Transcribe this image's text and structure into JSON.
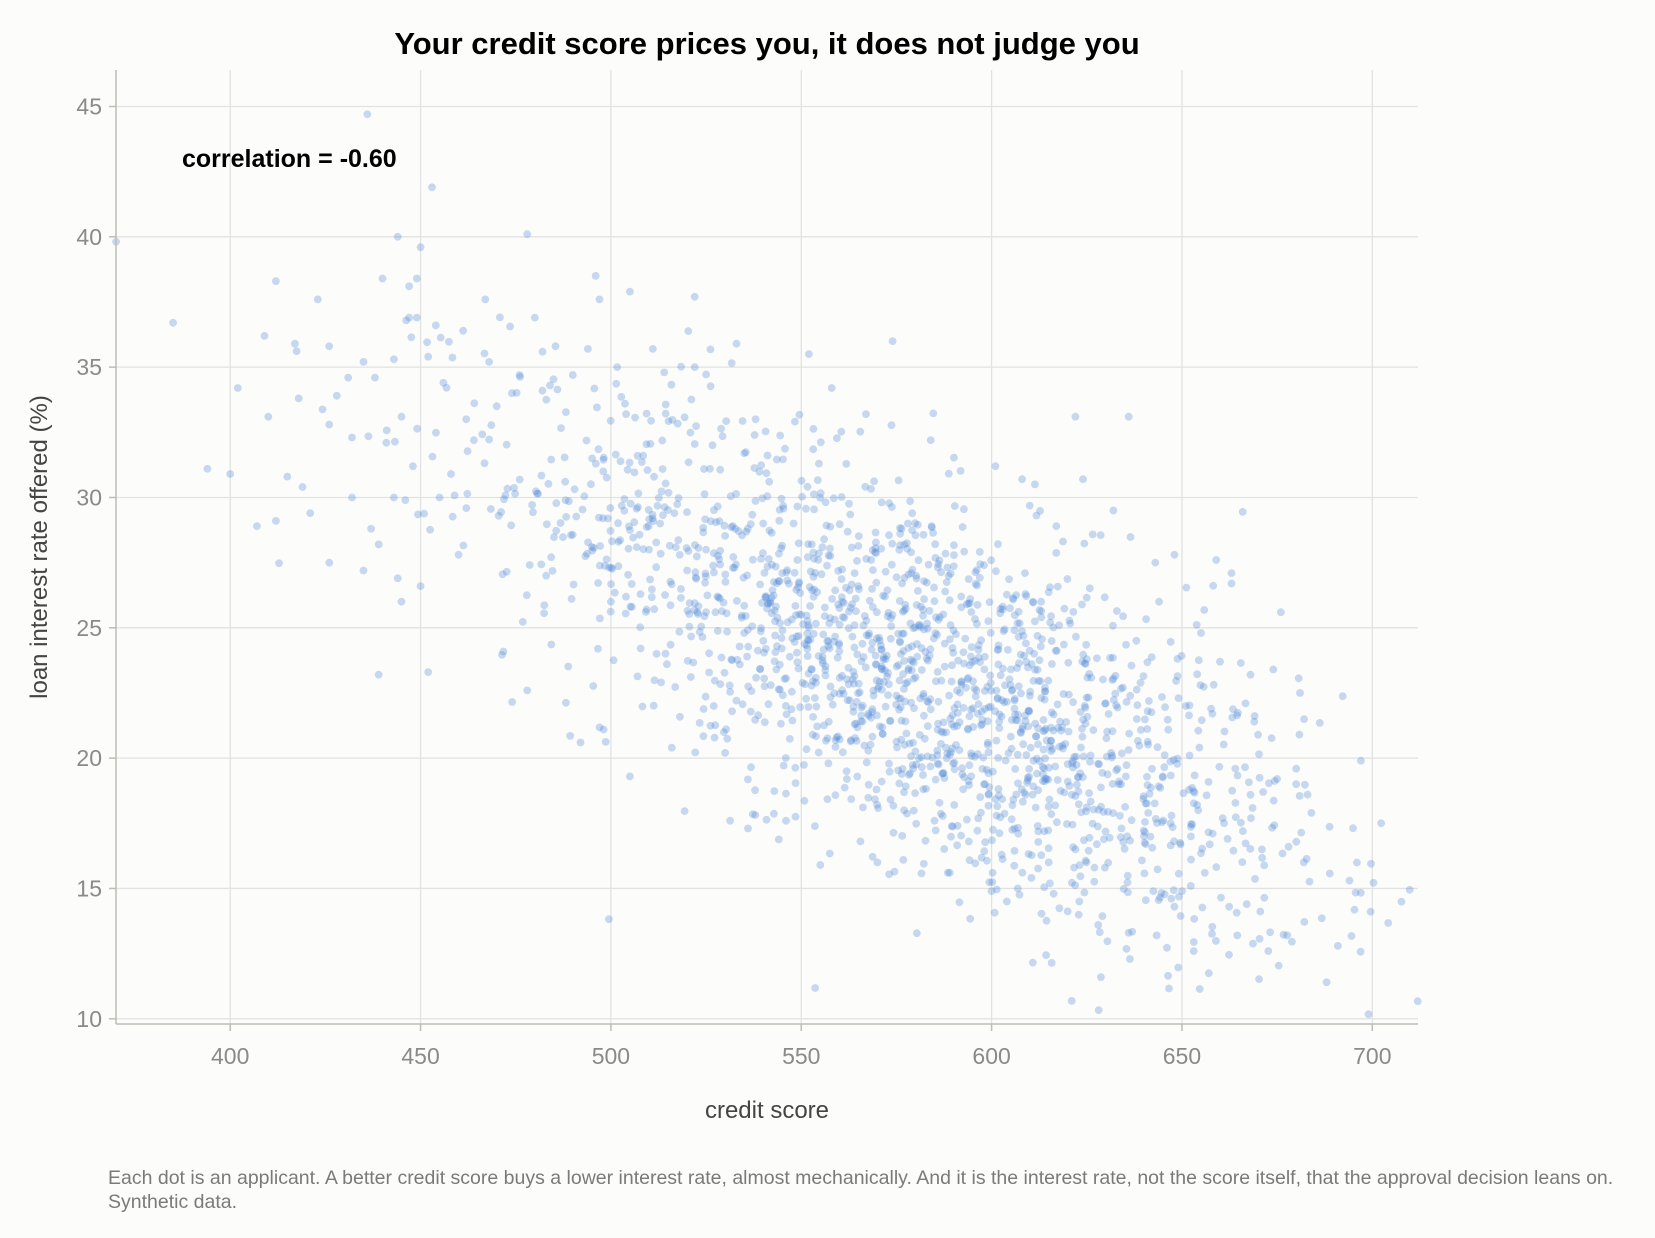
{
  "chart_data": {
    "type": "scatter",
    "title": "Your credit score prices you, it does not judge you",
    "xlabel": "credit score",
    "ylabel": "loan interest rate offered (%)",
    "xlim": [
      370,
      712
    ],
    "ylim": [
      9.8,
      46.4
    ],
    "xticks": [
      400,
      450,
      500,
      550,
      600,
      650,
      700
    ],
    "yticks": [
      10,
      15,
      20,
      25,
      30,
      35,
      40,
      45
    ],
    "grid": true,
    "annotation": "correlation = -0.60",
    "point_color": "#4a86d6",
    "n_points": 2000,
    "points_sample": [
      [
        385,
        36.7
      ],
      [
        394,
        31.1
      ],
      [
        400,
        30.9
      ],
      [
        402,
        34.2
      ],
      [
        407,
        28.9
      ],
      [
        409,
        36.2
      ],
      [
        410,
        33.1
      ],
      [
        412,
        38.3
      ],
      [
        412,
        29.1
      ],
      [
        415,
        30.8
      ],
      [
        417,
        35.9
      ],
      [
        418,
        33.8
      ],
      [
        419,
        30.4
      ],
      [
        421,
        29.4
      ],
      [
        423,
        37.6
      ],
      [
        426,
        35.8
      ],
      [
        426,
        32.8
      ],
      [
        428,
        33.9
      ],
      [
        431,
        34.6
      ],
      [
        432,
        32.3
      ],
      [
        432,
        30.0
      ],
      [
        435,
        35.2
      ],
      [
        435,
        27.2
      ],
      [
        436,
        44.7
      ],
      [
        437,
        28.8
      ],
      [
        438,
        34.6
      ],
      [
        439,
        28.2
      ],
      [
        439,
        23.2
      ],
      [
        440,
        38.4
      ],
      [
        441,
        32.1
      ],
      [
        443,
        35.3
      ],
      [
        443,
        30.0
      ],
      [
        444,
        26.9
      ],
      [
        444,
        40.0
      ],
      [
        445,
        26.0
      ],
      [
        445,
        33.1
      ],
      [
        446,
        29.9
      ],
      [
        447,
        38.1
      ],
      [
        447,
        36.9
      ],
      [
        448,
        31.2
      ],
      [
        449,
        36.9
      ],
      [
        449,
        38.4
      ],
      [
        450,
        39.6
      ],
      [
        450,
        26.6
      ],
      [
        452,
        35.4
      ],
      [
        452,
        23.3
      ],
      [
        453,
        41.9
      ],
      [
        454,
        36.6
      ],
      [
        455,
        30.0
      ],
      [
        456,
        34.4
      ],
      [
        458,
        30.9
      ],
      [
        460,
        27.8
      ],
      [
        462,
        33.0
      ],
      [
        464,
        32.2
      ],
      [
        467,
        37.6
      ],
      [
        468,
        35.2
      ],
      [
        470,
        33.5
      ],
      [
        474,
        34.0
      ],
      [
        476,
        34.7
      ],
      [
        478,
        40.1
      ],
      [
        478,
        22.6
      ],
      [
        480,
        36.9
      ],
      [
        482,
        34.1
      ],
      [
        483,
        27.0
      ],
      [
        484,
        34.3
      ],
      [
        488,
        30.6
      ],
      [
        490,
        34.7
      ],
      [
        492,
        20.6
      ],
      [
        495,
        28.1
      ],
      [
        496,
        38.5
      ],
      [
        497,
        37.6
      ],
      [
        498,
        31.0
      ],
      [
        500,
        26.0
      ],
      [
        502,
        28.3
      ],
      [
        504,
        33.2
      ],
      [
        505,
        37.9
      ],
      [
        505,
        19.3
      ],
      [
        507,
        31.6
      ],
      [
        510,
        28.0
      ],
      [
        511,
        35.7
      ],
      [
        512,
        24.0
      ],
      [
        514,
        34.8
      ],
      [
        516,
        20.4
      ],
      [
        520,
        27.2
      ],
      [
        522,
        37.7
      ],
      [
        522,
        35.0
      ],
      [
        525,
        28.0
      ],
      [
        527,
        22.0
      ],
      [
        528,
        26.2
      ],
      [
        530,
        20.2
      ],
      [
        532,
        28.9
      ],
      [
        533,
        35.9
      ],
      [
        535,
        24.8
      ],
      [
        536,
        17.3
      ],
      [
        538,
        33.0
      ],
      [
        540,
        29.0
      ],
      [
        542,
        22.8
      ],
      [
        545,
        27.1
      ],
      [
        546,
        17.6
      ],
      [
        548,
        29.0
      ],
      [
        550,
        25.5
      ],
      [
        552,
        35.5
      ],
      [
        553,
        20.9
      ],
      [
        555,
        15.9
      ],
      [
        556,
        28.4
      ],
      [
        558,
        34.2
      ],
      [
        560,
        24.1
      ],
      [
        562,
        19.2
      ],
      [
        564,
        27.1
      ],
      [
        565,
        26.6
      ],
      [
        567,
        33.2
      ],
      [
        569,
        22.4
      ],
      [
        570,
        16.0
      ],
      [
        572,
        26.2
      ],
      [
        574,
        36.0
      ],
      [
        575,
        22.4
      ],
      [
        577,
        18.0
      ],
      [
        578,
        29.0
      ],
      [
        580,
        23.1
      ],
      [
        582,
        25.7
      ],
      [
        584,
        32.2
      ],
      [
        585,
        17.6
      ],
      [
        588,
        20.4
      ],
      [
        589,
        15.6
      ],
      [
        590,
        24.9
      ],
      [
        592,
        26.2
      ],
      [
        594,
        16.8
      ],
      [
        596,
        22.6
      ],
      [
        598,
        19.0
      ],
      [
        598,
        27.4
      ],
      [
        600,
        14.9
      ],
      [
        601,
        31.2
      ],
      [
        602,
        21.4
      ],
      [
        604,
        14.5
      ],
      [
        605,
        22.8
      ],
      [
        607,
        17.1
      ],
      [
        608,
        30.7
      ],
      [
        609,
        24.4
      ],
      [
        611,
        19.9
      ],
      [
        613,
        26.0
      ],
      [
        614,
        22.7
      ],
      [
        615,
        16.0
      ],
      [
        617,
        28.9
      ],
      [
        618,
        21.4
      ],
      [
        620,
        19.1
      ],
      [
        622,
        33.1
      ],
      [
        622,
        16.5
      ],
      [
        624,
        30.7
      ],
      [
        625,
        23.8
      ],
      [
        626,
        20.1
      ],
      [
        627,
        15.8
      ],
      [
        628,
        13.6
      ],
      [
        630,
        22.1
      ],
      [
        632,
        29.5
      ],
      [
        634,
        19.0
      ],
      [
        636,
        13.3
      ],
      [
        636,
        33.1
      ],
      [
        638,
        24.5
      ],
      [
        640,
        17.0
      ],
      [
        641,
        21.8
      ],
      [
        643,
        27.5
      ],
      [
        644,
        26.0
      ],
      [
        645,
        19.3
      ],
      [
        647,
        17.5
      ],
      [
        648,
        27.8
      ],
      [
        648,
        14.3
      ],
      [
        650,
        14.9
      ],
      [
        651,
        22.0
      ],
      [
        652,
        20.1
      ],
      [
        654,
        18.2
      ],
      [
        655,
        24.8
      ],
      [
        656,
        15.6
      ],
      [
        658,
        21.7
      ],
      [
        659,
        27.6
      ],
      [
        660,
        23.7
      ],
      [
        662,
        16.9
      ],
      [
        663,
        27.1
      ],
      [
        663,
        26.7
      ],
      [
        664,
        19.6
      ],
      [
        666,
        17.2
      ],
      [
        667,
        14.4
      ],
      [
        668,
        23.2
      ],
      [
        669,
        21.4
      ],
      [
        670,
        20.9
      ],
      [
        671,
        16.5
      ],
      [
        674,
        23.4
      ],
      [
        675,
        19.2
      ],
      [
        676,
        25.6
      ],
      [
        678,
        16.6
      ],
      [
        680,
        19.0
      ],
      [
        681,
        22.5
      ],
      [
        682,
        16.0
      ],
      [
        683,
        18.6
      ],
      [
        684,
        17.9
      ],
      [
        688,
        11.4
      ],
      [
        694,
        15.3
      ],
      [
        697,
        19.9
      ]
    ]
  },
  "caption": "Each dot is an applicant. A better credit score buys a lower interest rate, almost mechanically. And it is the interest rate, not the score itself, that the approval decision leans on. Synthetic data."
}
